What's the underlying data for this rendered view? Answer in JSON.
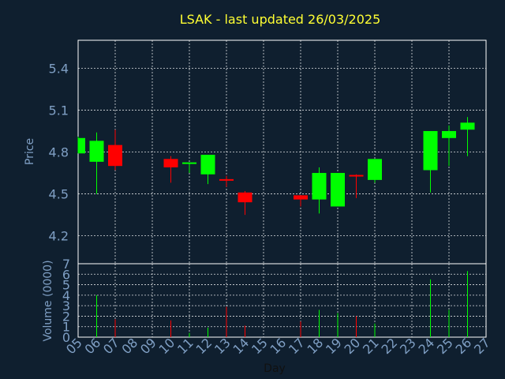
{
  "chart_data": {
    "type": "candlestick",
    "title": "LSAK - last updated 26/03/2025",
    "ylabel": "Price",
    "volume_ylabel": "Volume (0000)",
    "xlabel": "Day",
    "price_ylim": [
      4.0,
      5.6
    ],
    "price_yticks": [
      "4.2",
      "4.5",
      "4.8",
      "5.1",
      "5.4"
    ],
    "volume_ylim": [
      0,
      7
    ],
    "volume_yticks": [
      "0",
      "1",
      "2",
      "3",
      "4",
      "5",
      "6",
      "7"
    ],
    "x_ticks": [
      "05",
      "06",
      "07",
      "08",
      "09",
      "10",
      "11",
      "12",
      "13",
      "14",
      "15",
      "16",
      "17",
      "18",
      "19",
      "20",
      "21",
      "22",
      "23",
      "24",
      "25",
      "26",
      "27"
    ],
    "grid": true,
    "up_color": "#00ff00",
    "down_color": "#ff0000",
    "candles": [
      {
        "day": "05",
        "open": 4.79,
        "high": 4.91,
        "low": 4.79,
        "close": 4.9,
        "volume": 0.0
      },
      {
        "day": "06",
        "open": 4.73,
        "high": 4.94,
        "low": 4.5,
        "close": 4.88,
        "volume": 4.0
      },
      {
        "day": "07",
        "open": 4.85,
        "high": 4.96,
        "low": 4.67,
        "close": 4.7,
        "volume": 1.7
      },
      {
        "day": "10",
        "open": 4.75,
        "high": 4.77,
        "low": 4.58,
        "close": 4.69,
        "volume": 1.6
      },
      {
        "day": "11",
        "open": 4.71,
        "high": 4.72,
        "low": 4.65,
        "close": 4.72,
        "volume": 0.4
      },
      {
        "day": "12",
        "open": 4.64,
        "high": 4.78,
        "low": 4.57,
        "close": 4.78,
        "volume": 0.9
      },
      {
        "day": "13",
        "open": 4.6,
        "high": 4.63,
        "low": 4.55,
        "close": 4.59,
        "volume": 2.9
      },
      {
        "day": "14",
        "open": 4.51,
        "high": 4.52,
        "low": 4.35,
        "close": 4.44,
        "volume": 1.1
      },
      {
        "day": "17",
        "open": 4.49,
        "high": 4.49,
        "low": 4.41,
        "close": 4.46,
        "volume": 1.5
      },
      {
        "day": "18",
        "open": 4.46,
        "high": 4.69,
        "low": 4.36,
        "close": 4.65,
        "volume": 2.6
      },
      {
        "day": "19",
        "open": 4.41,
        "high": 4.65,
        "low": 4.41,
        "close": 4.65,
        "volume": 2.3
      },
      {
        "day": "20",
        "open": 4.63,
        "high": 4.64,
        "low": 4.47,
        "close": 4.62,
        "volume": 2.0
      },
      {
        "day": "21",
        "open": 4.6,
        "high": 4.75,
        "low": 4.58,
        "close": 4.75,
        "volume": 1.3
      },
      {
        "day": "24",
        "open": 4.67,
        "high": 4.95,
        "low": 4.51,
        "close": 4.95,
        "volume": 5.5
      },
      {
        "day": "25",
        "open": 4.9,
        "high": 4.99,
        "low": 4.7,
        "close": 4.95,
        "volume": 2.6
      },
      {
        "day": "26",
        "open": 4.96,
        "high": 5.05,
        "low": 4.77,
        "close": 5.01,
        "volume": 6.3
      }
    ]
  },
  "colors": {
    "background": "#0f1f2f",
    "frame": "#ffffff",
    "title": "#ffff33",
    "axis_text": "#7f9fc4",
    "day_label": "#111111"
  }
}
